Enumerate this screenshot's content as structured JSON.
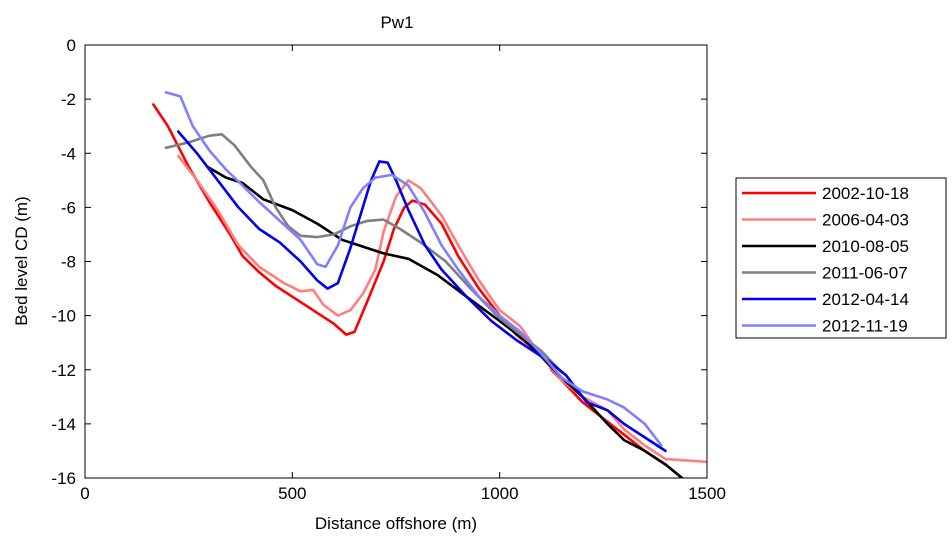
{
  "chart_data": {
    "type": "line",
    "title": "Pw1",
    "xlabel": "Distance offshore  (m)",
    "ylabel": "Bed level CD  (m)",
    "xlim": [
      0,
      1500
    ],
    "ylim": [
      -16,
      0
    ],
    "xticks": [
      0,
      500,
      1000,
      1500
    ],
    "yticks": [
      0,
      -2,
      -4,
      -6,
      -8,
      -10,
      -12,
      -14,
      -16
    ],
    "grid": false,
    "legend_position": "right",
    "series": [
      {
        "name": "2002-10-18",
        "color": "#ff0000",
        "points": [
          [
            165,
            -2.2
          ],
          [
            200,
            -3.0
          ],
          [
            250,
            -4.5
          ],
          [
            300,
            -5.8
          ],
          [
            350,
            -7.0
          ],
          [
            380,
            -7.8
          ],
          [
            420,
            -8.4
          ],
          [
            460,
            -8.9
          ],
          [
            500,
            -9.3
          ],
          [
            550,
            -9.8
          ],
          [
            600,
            -10.3
          ],
          [
            630,
            -10.7
          ],
          [
            650,
            -10.6
          ],
          [
            680,
            -9.5
          ],
          [
            720,
            -8.0
          ],
          [
            745,
            -6.8
          ],
          [
            770,
            -6.0
          ],
          [
            790,
            -5.75
          ],
          [
            820,
            -5.9
          ],
          [
            860,
            -6.6
          ],
          [
            900,
            -7.8
          ],
          [
            950,
            -9.0
          ],
          [
            1000,
            -10.0
          ],
          [
            1040,
            -10.7
          ],
          [
            1080,
            -11.2
          ],
          [
            1110,
            -11.5
          ],
          [
            1125,
            -12.0
          ],
          [
            1150,
            -12.4
          ],
          [
            1200,
            -13.2
          ],
          [
            1250,
            -13.8
          ],
          [
            1300,
            -14.4
          ],
          [
            1350,
            -15.0
          ],
          [
            1400,
            -15.5
          ],
          [
            1440,
            -16.0
          ]
        ]
      },
      {
        "name": "2006-04-03",
        "color": "#ff7f7f",
        "points": [
          [
            225,
            -4.1
          ],
          [
            270,
            -5.0
          ],
          [
            320,
            -6.1
          ],
          [
            370,
            -7.4
          ],
          [
            420,
            -8.2
          ],
          [
            480,
            -8.8
          ],
          [
            520,
            -9.1
          ],
          [
            550,
            -9.05
          ],
          [
            575,
            -9.6
          ],
          [
            610,
            -10.0
          ],
          [
            640,
            -9.8
          ],
          [
            670,
            -9.2
          ],
          [
            700,
            -8.3
          ],
          [
            720,
            -6.9
          ],
          [
            750,
            -5.6
          ],
          [
            780,
            -5.0
          ],
          [
            810,
            -5.3
          ],
          [
            860,
            -6.3
          ],
          [
            900,
            -7.4
          ],
          [
            950,
            -8.7
          ],
          [
            1000,
            -9.8
          ],
          [
            1050,
            -10.4
          ],
          [
            1100,
            -11.5
          ],
          [
            1150,
            -12.4
          ],
          [
            1200,
            -13.0
          ],
          [
            1260,
            -13.5
          ],
          [
            1300,
            -14.2
          ],
          [
            1350,
            -14.8
          ],
          [
            1400,
            -15.3
          ],
          [
            1450,
            -15.35
          ],
          [
            1500,
            -15.4
          ]
        ]
      },
      {
        "name": "2010-08-05",
        "color": "#000000",
        "points": [
          [
            295,
            -4.5
          ],
          [
            340,
            -4.9
          ],
          [
            380,
            -5.1
          ],
          [
            430,
            -5.7
          ],
          [
            500,
            -6.1
          ],
          [
            560,
            -6.6
          ],
          [
            620,
            -7.2
          ],
          [
            680,
            -7.5
          ],
          [
            720,
            -7.7
          ],
          [
            780,
            -7.9
          ],
          [
            850,
            -8.5
          ],
          [
            920,
            -9.3
          ],
          [
            1000,
            -10.2
          ],
          [
            1060,
            -10.9
          ],
          [
            1100,
            -11.5
          ],
          [
            1150,
            -12.3
          ],
          [
            1200,
            -13.0
          ],
          [
            1260,
            -14.0
          ],
          [
            1300,
            -14.6
          ],
          [
            1350,
            -15.0
          ],
          [
            1400,
            -15.5
          ],
          [
            1440,
            -16.0
          ]
        ]
      },
      {
        "name": "2011-06-07",
        "color": "#7f7f7f",
        "points": [
          [
            195,
            -3.8
          ],
          [
            250,
            -3.6
          ],
          [
            300,
            -3.35
          ],
          [
            330,
            -3.3
          ],
          [
            360,
            -3.7
          ],
          [
            400,
            -4.5
          ],
          [
            430,
            -5.0
          ],
          [
            460,
            -6.0
          ],
          [
            490,
            -6.7
          ],
          [
            520,
            -7.05
          ],
          [
            560,
            -7.1
          ],
          [
            600,
            -7.0
          ],
          [
            640,
            -6.7
          ],
          [
            680,
            -6.5
          ],
          [
            720,
            -6.45
          ],
          [
            760,
            -6.8
          ],
          [
            810,
            -7.3
          ],
          [
            870,
            -8.0
          ],
          [
            930,
            -9.0
          ],
          [
            1000,
            -10.1
          ],
          [
            1050,
            -10.7
          ],
          [
            1100,
            -11.3
          ],
          [
            1150,
            -12.1
          ]
        ]
      },
      {
        "name": "2012-04-14",
        "color": "#0000ee",
        "points": [
          [
            225,
            -3.2
          ],
          [
            270,
            -4.0
          ],
          [
            320,
            -5.0
          ],
          [
            370,
            -6.0
          ],
          [
            420,
            -6.8
          ],
          [
            470,
            -7.3
          ],
          [
            520,
            -8.0
          ],
          [
            560,
            -8.7
          ],
          [
            585,
            -9.0
          ],
          [
            610,
            -8.8
          ],
          [
            640,
            -7.5
          ],
          [
            670,
            -6.0
          ],
          [
            690,
            -5.0
          ],
          [
            710,
            -4.3
          ],
          [
            730,
            -4.35
          ],
          [
            750,
            -5.0
          ],
          [
            780,
            -6.1
          ],
          [
            820,
            -7.4
          ],
          [
            860,
            -8.3
          ],
          [
            920,
            -9.3
          ],
          [
            980,
            -10.2
          ],
          [
            1040,
            -10.9
          ],
          [
            1080,
            -11.3
          ],
          [
            1120,
            -11.7
          ],
          [
            1160,
            -12.2
          ],
          [
            1210,
            -13.2
          ],
          [
            1260,
            -13.5
          ],
          [
            1300,
            -14.0
          ],
          [
            1350,
            -14.5
          ],
          [
            1400,
            -15.0
          ]
        ]
      },
      {
        "name": "2012-11-19",
        "color": "#7f7fff",
        "points": [
          [
            195,
            -1.75
          ],
          [
            230,
            -1.9
          ],
          [
            260,
            -3.0
          ],
          [
            300,
            -3.9
          ],
          [
            340,
            -4.6
          ],
          [
            380,
            -5.2
          ],
          [
            420,
            -5.8
          ],
          [
            470,
            -6.5
          ],
          [
            520,
            -7.2
          ],
          [
            560,
            -8.1
          ],
          [
            580,
            -8.2
          ],
          [
            610,
            -7.4
          ],
          [
            640,
            -6.0
          ],
          [
            670,
            -5.3
          ],
          [
            700,
            -4.9
          ],
          [
            740,
            -4.8
          ],
          [
            780,
            -5.2
          ],
          [
            820,
            -6.2
          ],
          [
            860,
            -7.4
          ],
          [
            900,
            -8.3
          ],
          [
            950,
            -9.3
          ],
          [
            1000,
            -10.0
          ],
          [
            1050,
            -10.6
          ],
          [
            1100,
            -11.4
          ],
          [
            1150,
            -12.3
          ],
          [
            1200,
            -12.8
          ],
          [
            1260,
            -13.1
          ],
          [
            1300,
            -13.4
          ],
          [
            1350,
            -14.0
          ],
          [
            1390,
            -14.8
          ]
        ]
      }
    ]
  }
}
